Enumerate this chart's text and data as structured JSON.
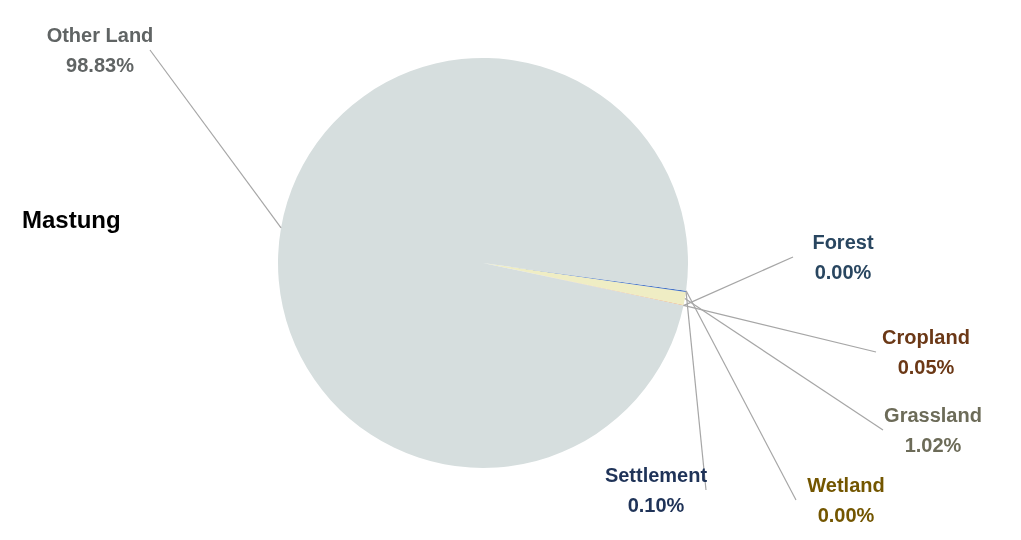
{
  "chart_data": {
    "type": "pie",
    "title": "Mastung",
    "categories": [
      "Forest",
      "Cropland",
      "Grassland",
      "Settlement",
      "Wetland",
      "Other Land"
    ],
    "values": [
      0.0,
      0.05,
      1.02,
      0.1,
      0.0,
      98.83
    ],
    "colors": [
      "#5b9bd5",
      "#ed7d31",
      "#efedc4",
      "#4472c4",
      "#ffc000",
      "#d6dede"
    ],
    "value_labels": [
      "0.00%",
      "0.05%",
      "1.02%",
      "0.10%",
      "0.00%",
      "98.83%"
    ]
  }
}
